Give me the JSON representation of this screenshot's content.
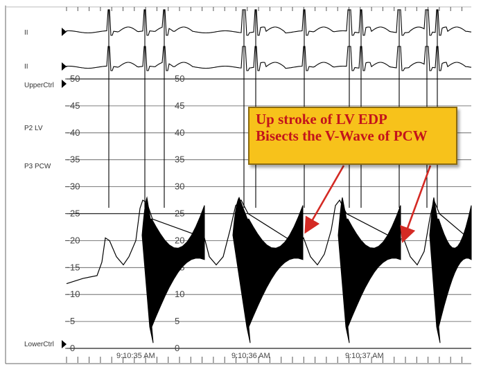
{
  "channels": {
    "lead_a": "II",
    "lead_b": "II",
    "upper": "UpperCtrl",
    "lv": "P2 LV",
    "pcw": "P3 PCW",
    "lower": "LowerCtrl"
  },
  "callout": {
    "line1": "Up stroke of LV EDP",
    "line2": "Bisects the V-Wave of PCW"
  },
  "colors": {
    "callout_bg": "#f7c21b",
    "callout_text": "#c3141b",
    "arrow": "#d42a24",
    "trace": "#000000"
  },
  "chart_data": {
    "type": "line",
    "title": "",
    "xlabel": "",
    "ylabel": "",
    "ylim": [
      0,
      50
    ],
    "y_ticks": [
      {
        "value": 50,
        "label": "50"
      },
      {
        "value": 45,
        "label": "45"
      },
      {
        "value": 40,
        "label": "40"
      },
      {
        "value": 35,
        "label": "35"
      },
      {
        "value": 30,
        "label": "30"
      },
      {
        "value": 25,
        "label": "25"
      },
      {
        "value": 20,
        "label": "20"
      },
      {
        "value": 15,
        "label": "15"
      },
      {
        "value": 10,
        "label": "10"
      },
      {
        "value": 5,
        "label": "5"
      },
      {
        "value": 0,
        "label": "0"
      }
    ],
    "time_labels": [
      "9:10:35 AM",
      "9:10:36 AM",
      "9:10:37 AM"
    ],
    "grid": true,
    "series": [
      {
        "name": "P2 LV",
        "diastolic_peak_mmHg": 28,
        "min_mmHg": 1
      },
      {
        "name": "P3 PCW",
        "v_wave_mmHg": 20.5
      }
    ]
  }
}
